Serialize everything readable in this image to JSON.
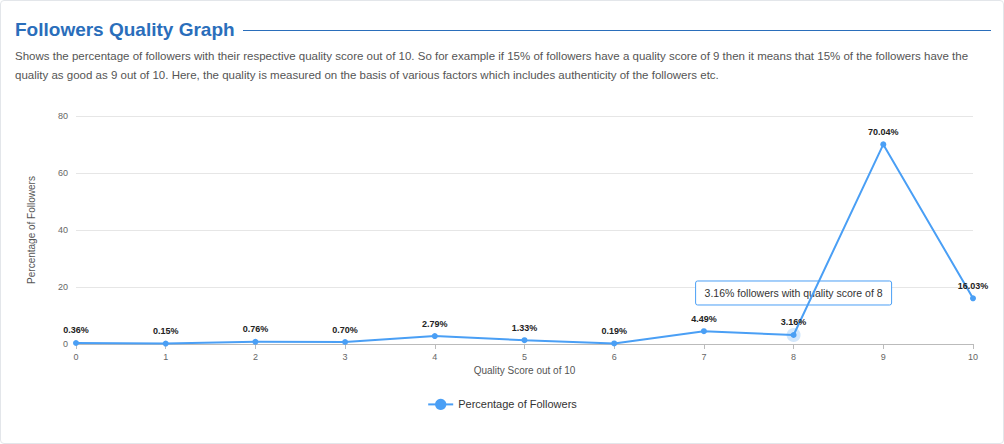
{
  "chart_data": {
    "type": "line",
    "title": "Followers Quality Graph",
    "subtitle": "Shows the percentage of followers with their respective quality score out of 10. So for example if 15% of followers have a quality score of 9 then it means that 15% of the followers have the quality as good as 9 out of 10. Here, the quality is measured on the basis of various factors which includes authenticity of the followers etc.",
    "x_label": "Quality Score out of 10",
    "y_label": "Percentage of Followers",
    "categories": [
      "0",
      "1",
      "2",
      "3",
      "4",
      "5",
      "6",
      "7",
      "8",
      "9",
      "10"
    ],
    "series": [
      {
        "name": "Percentage of Followers",
        "color": "#4a9ff5",
        "values": [
          0.36,
          0.15,
          0.76,
          0.7,
          2.79,
          1.33,
          0.19,
          4.49,
          3.16,
          70.04,
          16.03
        ],
        "value_labels": [
          "0.36%",
          "0.15%",
          "0.76%",
          "0.70%",
          "2.79%",
          "1.33%",
          "0.19%",
          "4.49%",
          "3.16%",
          "70.04%",
          "16.03%"
        ]
      }
    ],
    "ylim": [
      0,
      80
    ],
    "yticks": [
      0,
      20,
      40,
      60,
      80
    ],
    "grid": true,
    "data_labels": true,
    "legend": "bottom",
    "marker": "circle",
    "annotations": [
      {
        "text": "3.16% followers with quality score of 8",
        "x": "8",
        "y": 3.16
      }
    ]
  }
}
